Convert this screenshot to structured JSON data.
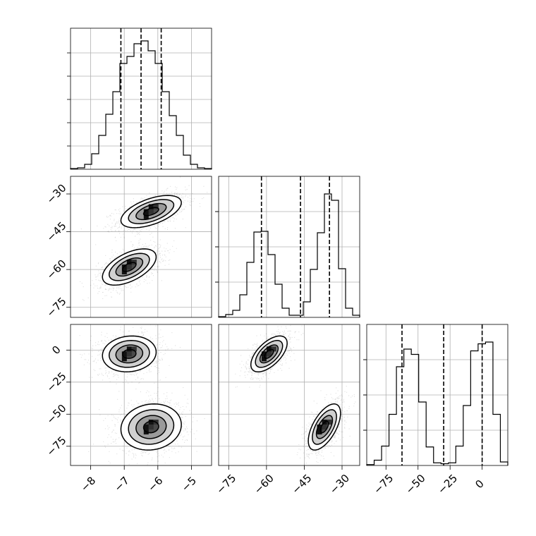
{
  "chart_data": {
    "type": "corner",
    "parameters": [
      {
        "range": [
          -8.6,
          -4.4
        ],
        "ticks": [
          -8,
          -7,
          -6,
          -5
        ],
        "quantiles": [
          -7.1,
          -6.5,
          -5.9
        ],
        "histogram": [
          1,
          2,
          7,
          22,
          48,
          78,
          110,
          150,
          160,
          178,
          182,
          168,
          150,
          110,
          76,
          48,
          20,
          7,
          2,
          1
        ],
        "hist_ymax": 200,
        "hist_grid": [
          33,
          66,
          99,
          132,
          165
        ]
      },
      {
        "range": [
          -79,
          -23
        ],
        "ticks": [
          -75,
          -60,
          -45,
          -30
        ],
        "quantiles": [
          -62,
          -46.5,
          -35
        ],
        "histogram": [
          1,
          4,
          10,
          32,
          78,
          121,
          122,
          89,
          47,
          13,
          3,
          3,
          22,
          68,
          120,
          175,
          166,
          69,
          13,
          3
        ],
        "hist_ymax": 200,
        "hist_grid": [
          50,
          100,
          150
        ]
      },
      {
        "range": [
          -90,
          20
        ],
        "ticks": [
          -75,
          -50,
          -25,
          0
        ],
        "quantiles": [
          -62.5,
          -30,
          0
        ],
        "histogram": [
          1,
          6,
          22,
          58,
          112,
          132,
          126,
          72,
          21,
          3,
          2,
          3,
          22,
          68,
          130,
          138,
          140,
          58,
          4
        ],
        "hist_ymax": 160,
        "hist_grid": [
          40,
          80,
          120
        ]
      }
    ],
    "modes": [
      {
        "mean": [
          -6.2,
          -37,
          -60
        ],
        "sd": [
          0.45,
          3.2,
          9
        ]
      },
      {
        "mean": [
          -6.85,
          -59,
          -3
        ],
        "sd": [
          0.4,
          3.6,
          7
        ]
      }
    ],
    "correlations": {
      "p0_p1": 0.55,
      "p0_p2": 0.1,
      "p1_p2": 0.6
    },
    "contour_levels_sigma": [
      0.5,
      1.0,
      1.5,
      2.0
    ],
    "colors": {
      "line": "#000000",
      "grid": "#b0b0b0",
      "points": "#000000",
      "background": "#ffffff"
    },
    "grid": true
  }
}
